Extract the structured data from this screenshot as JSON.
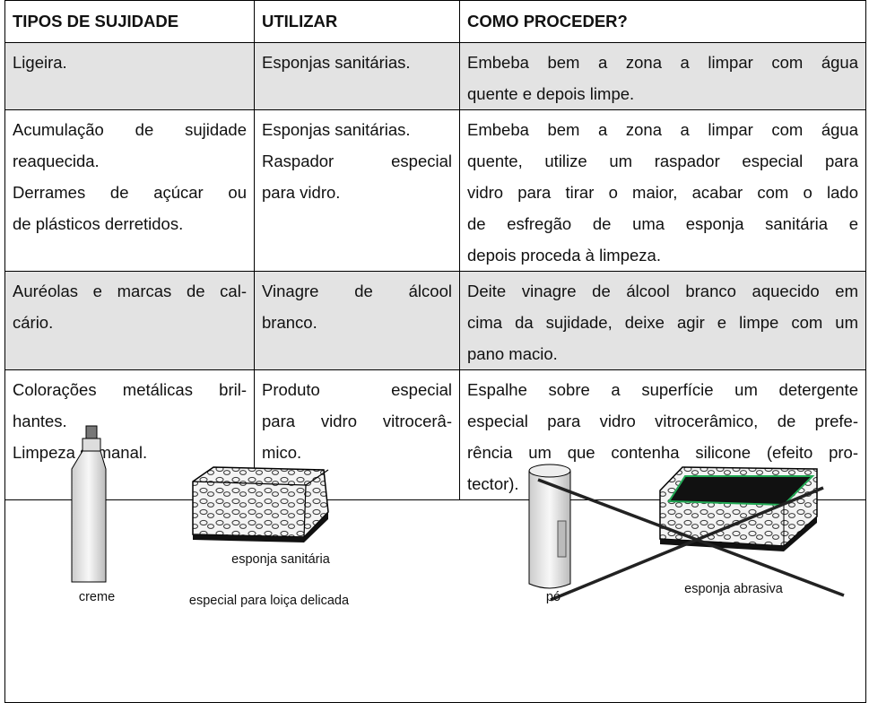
{
  "table": {
    "header": [
      "TIPOS DE SUJIDADE",
      "UTILIZAR",
      "COMO PROCEDER?"
    ],
    "rows": [
      [
        [
          "Ligeira."
        ],
        [
          "Esponjas sanitárias."
        ],
        [
          "Embeba bem a zona a limpar com água",
          "quente e depois limpe."
        ]
      ],
      [
        [
          "Acumulação de sujidade",
          "reaquecida.",
          "Derrames de açúcar ou",
          "de plásticos derretidos."
        ],
        [
          "Esponjas sanitárias.",
          "Raspador especial",
          "para vidro."
        ],
        [
          "Embeba bem a zona a limpar com água",
          "quente, utilize um raspador especial para",
          "vidro para tirar o maior, acabar com o lado",
          "de esfregão de uma esponja sanitária e",
          "depois proceda à limpeza."
        ]
      ],
      [
        [
          "Auréolas e marcas de cal-",
          "cário."
        ],
        [
          "Vinagre de álcool",
          "branco."
        ],
        [
          "Deite vinagre de álcool branco aquecido em",
          "cima da sujidade, deixe agir e limpe com um",
          "pano macio."
        ]
      ],
      [
        [
          "Colorações metálicas bril-",
          "hantes.",
          "Limpeza semanal."
        ],
        [
          "Produto especial",
          "para vidro vitrocerâ-",
          "mico."
        ],
        [
          "Espalhe sobre a superfície um detergente",
          "especial para vidro vitrocerâmico, de prefe-",
          "rência um que contenha silicone (efeito pro-",
          "tector)."
        ]
      ]
    ]
  },
  "figures": [
    {
      "captions": [
        "creme"
      ]
    },
    {
      "captions": [
        "esponja sanitária",
        "especial para loiça delicada"
      ]
    },
    {
      "captions": [
        "pó"
      ]
    },
    {
      "captions": [
        "esponja abrasiva"
      ]
    }
  ]
}
